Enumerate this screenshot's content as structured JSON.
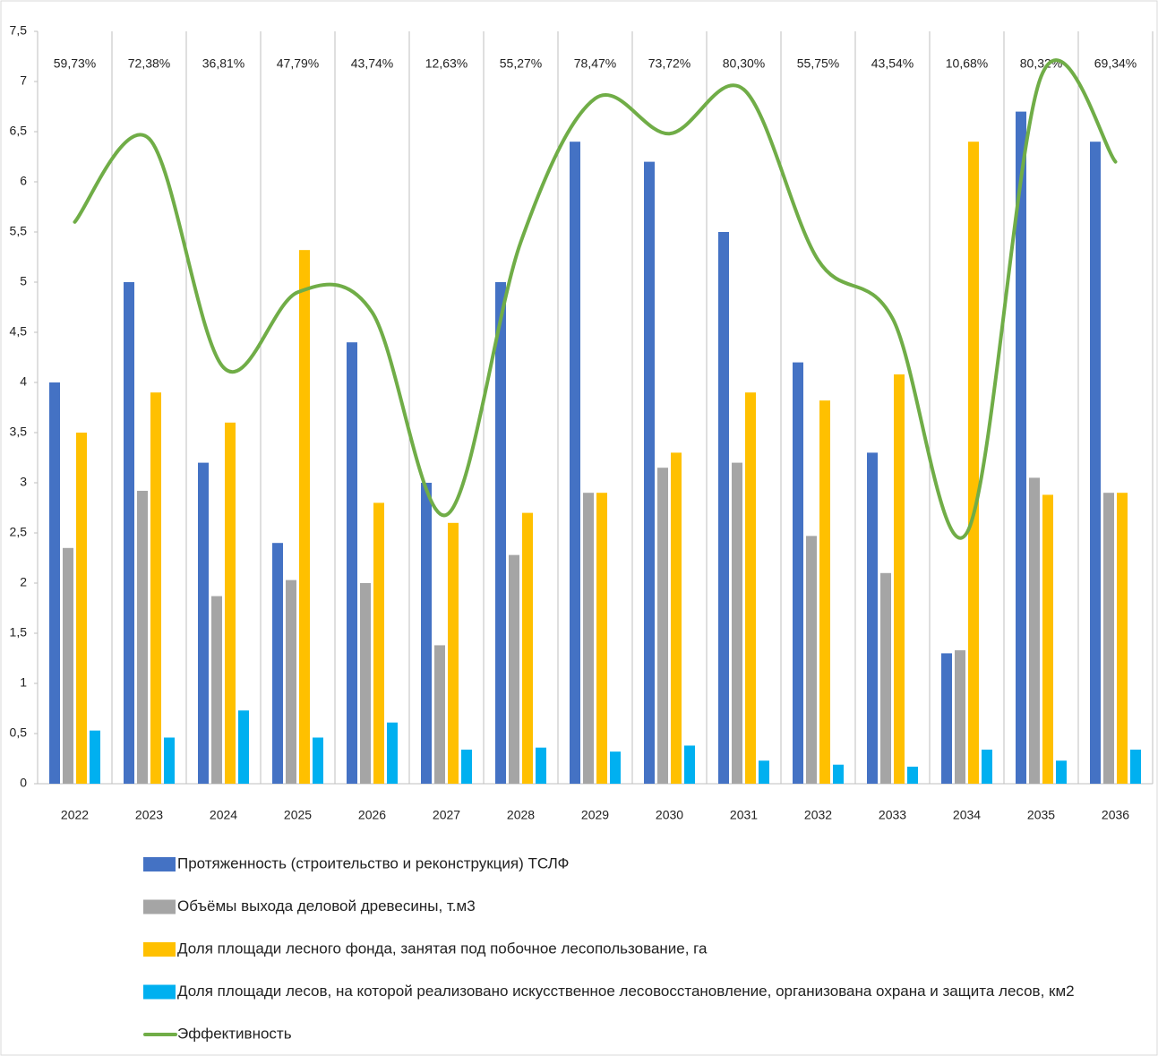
{
  "chart_data": {
    "type": "bar",
    "categories": [
      "2022",
      "2023",
      "2024",
      "2025",
      "2026",
      "2027",
      "2028",
      "2029",
      "2030",
      "2031",
      "2032",
      "2033",
      "2034",
      "2035",
      "2036"
    ],
    "annotations": [
      "59,73%",
      "72,38%",
      "36,81%",
      "47,79%",
      "43,74%",
      "12,63%",
      "55,27%",
      "78,47%",
      "73,72%",
      "80,30%",
      "55,75%",
      "43,54%",
      "10,68%",
      "80,32%",
      "69,34%"
    ],
    "series": [
      {
        "name": "Протяженность  (строительство и реконструкция) ТСЛФ",
        "color": "#4472c4",
        "type": "bar",
        "values": [
          4.0,
          5.0,
          3.2,
          2.4,
          4.4,
          3.0,
          5.0,
          6.4,
          6.2,
          5.5,
          4.2,
          3.3,
          1.3,
          6.7,
          6.4
        ]
      },
      {
        "name": "Объёмы выхода деловой древесины, т.м3",
        "color": "#a5a5a5",
        "type": "bar",
        "values": [
          2.35,
          2.92,
          1.87,
          2.03,
          2.0,
          1.38,
          2.28,
          2.9,
          3.15,
          3.2,
          2.47,
          2.1,
          1.33,
          3.05,
          2.9
        ]
      },
      {
        "name": "Доля площади лесного фонда, занятая под побочное лесопользование, га",
        "color": "#ffc000",
        "type": "bar",
        "values": [
          3.5,
          3.9,
          3.6,
          5.32,
          2.8,
          2.6,
          2.7,
          2.9,
          3.3,
          3.9,
          3.82,
          4.08,
          6.4,
          2.88,
          2.9
        ]
      },
      {
        "name": "Доля площади лесов, на которой реализовано искусственное лесовосстановление, организована охрана и защита лесов, км2",
        "color": "#00b0f0",
        "type": "bar",
        "values": [
          0.53,
          0.46,
          0.73,
          0.46,
          0.61,
          0.34,
          0.36,
          0.32,
          0.38,
          0.23,
          0.19,
          0.17,
          0.34,
          0.23,
          0.34
        ]
      },
      {
        "name": "Эффективность",
        "color": "#70ad47",
        "type": "line",
        "values": [
          5.6,
          6.43,
          4.15,
          4.9,
          4.7,
          2.68,
          5.4,
          6.83,
          6.48,
          6.92,
          5.22,
          4.64,
          2.5,
          7.05,
          6.2
        ]
      }
    ],
    "ylim": [
      0,
      7.5
    ],
    "yticks": [
      0,
      {
        "value": 0.5,
        "label": "0,5"
      },
      1,
      {
        "value": 1.5,
        "label": "1,5"
      },
      2,
      {
        "value": 2.5,
        "label": "2,5"
      },
      3,
      {
        "value": 3.5,
        "label": "3,5"
      },
      4,
      {
        "value": 4.5,
        "label": "4,5"
      },
      5,
      {
        "value": 5.5,
        "label": "5,5"
      },
      6,
      {
        "value": 6.5,
        "label": "6,5"
      },
      7,
      {
        "value": 7.5,
        "label": "7,5"
      }
    ],
    "grid": false
  }
}
